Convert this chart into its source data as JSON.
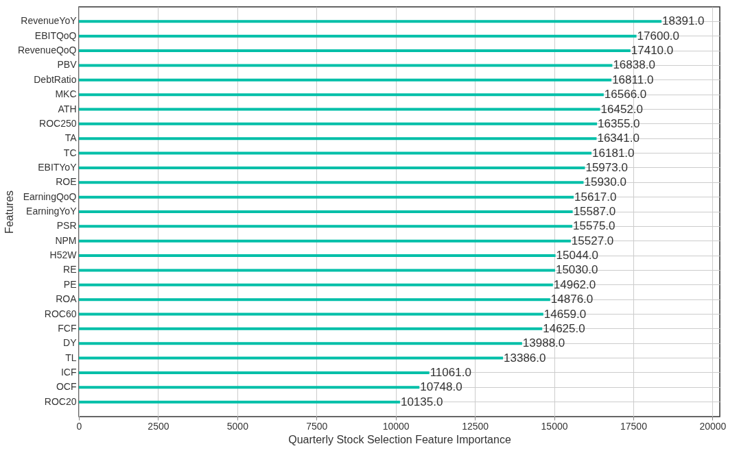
{
  "chart_data": {
    "type": "bar",
    "orientation": "horizontal",
    "xlabel": "Quarterly Stock Selection Feature Importance",
    "ylabel": "Features",
    "categories": [
      "RevenueYoY",
      "EBITQoQ",
      "RevenueQoQ",
      "PBV",
      "DebtRatio",
      "MKC",
      "ATH",
      "ROC250",
      "TA",
      "TC",
      "EBITYoY",
      "ROE",
      "EarningQoQ",
      "EarningYoY",
      "PSR",
      "NPM",
      "H52W",
      "RE",
      "PE",
      "ROA",
      "ROC60",
      "FCF",
      "DY",
      "TL",
      "ICF",
      "OCF",
      "ROC20"
    ],
    "values": [
      18391,
      17600,
      17410,
      16838,
      16811,
      16566,
      16452,
      16355,
      16341,
      16181,
      15973,
      15930,
      15617,
      15587,
      15575,
      15527,
      15044,
      15030,
      14962,
      14876,
      14659,
      14625,
      13988,
      13386,
      11061,
      10748,
      10135
    ],
    "value_labels": [
      "18391.0",
      "17600.0",
      "17410.0",
      "16838.0",
      "16811.0",
      "16566.0",
      "16452.0",
      "16355.0",
      "16341.0",
      "16181.0",
      "15973.0",
      "15930.0",
      "15617.0",
      "15587.0",
      "15575.0",
      "15527.0",
      "15044.0",
      "15030.0",
      "14962.0",
      "14876.0",
      "14659.0",
      "14625.0",
      "13988.0",
      "13386.0",
      "11061.0",
      "10748.0",
      "10135.0"
    ],
    "color": "#00bfa8",
    "xlim": [
      0,
      20230
    ],
    "xticks": [
      0,
      2500,
      5000,
      7500,
      10000,
      12500,
      15000,
      17500,
      20000
    ],
    "grid": true
  }
}
